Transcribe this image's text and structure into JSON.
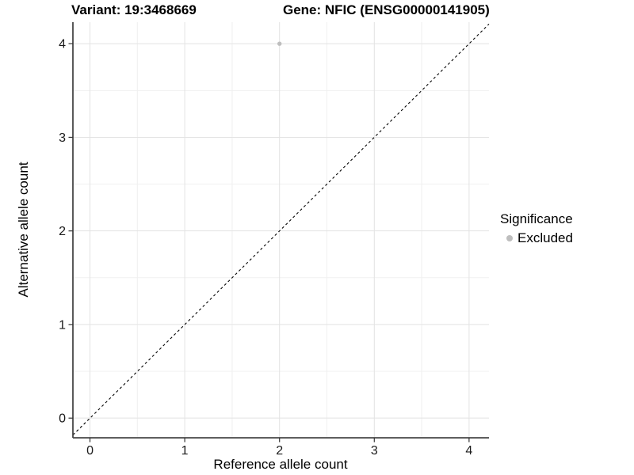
{
  "titles": {
    "variant": "Variant: 19:3468669",
    "gene": "Gene: NFIC (ENSG00000141905)"
  },
  "legend": {
    "title": "Significance",
    "items": [
      {
        "label": "Excluded",
        "color": "#bebebe",
        "marker": "circle"
      }
    ]
  },
  "chart_data": {
    "type": "scatter",
    "title": "Variant: 19:3468669 | Gene: NFIC (ENSG00000141905)",
    "xlabel": "Reference allele count",
    "ylabel": "Alternative allele count",
    "xlim": [
      -0.18,
      4.21
    ],
    "ylim": [
      -0.21,
      4.23
    ],
    "xticks": [
      0,
      1,
      2,
      3,
      4
    ],
    "yticks": [
      0,
      1,
      2,
      3,
      4
    ],
    "xticks_minor": [
      0.5,
      1.5,
      2.5,
      3.5
    ],
    "yticks_minor": [
      0.5,
      1.5,
      2.5,
      3.5
    ],
    "grid": "major+minor",
    "legend_position": "right",
    "series": [
      {
        "name": "Excluded",
        "color": "#bebebe",
        "points": [
          {
            "x": 2,
            "y": 4
          }
        ]
      }
    ],
    "reference_line": {
      "style": "dashed",
      "slope": 1,
      "intercept": 0,
      "color": "#000000"
    },
    "colors": {
      "grid_major": "#e3e3e3",
      "grid_minor": "#f0f0f0",
      "axis_line": "#474747",
      "tick_mark": "#333333",
      "tick_label": "#1a1a1a",
      "point": "#bebebe"
    }
  }
}
